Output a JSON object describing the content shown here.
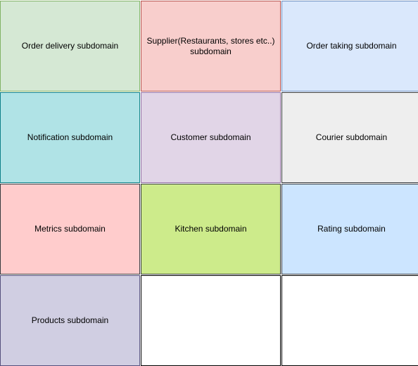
{
  "cells": [
    {
      "label": "Order delivery subdomain",
      "fill": "#d5e8d4"
    },
    {
      "label": "Supplier(Restaurants, stores etc..) subdomain",
      "fill": "#f8cecc"
    },
    {
      "label": "Order taking subdomain",
      "fill": "#dae8fc"
    },
    {
      "label": "Notification subdomain",
      "fill": "#b0e3e6"
    },
    {
      "label": "Customer subdomain",
      "fill": "#e1d5e7"
    },
    {
      "label": "Courier subdomain",
      "fill": "#eeeeee"
    },
    {
      "label": "Metrics subdomain",
      "fill": "#ffcccc"
    },
    {
      "label": "Kitchen subdomain",
      "fill": "#cdeb8b"
    },
    {
      "label": "Rating subdomain",
      "fill": "#cce5ff"
    },
    {
      "label": "Products subdomain",
      "fill": "#d0cee2"
    },
    {
      "label": "",
      "fill": "#ffffff"
    },
    {
      "label": "",
      "fill": "#ffffff"
    }
  ]
}
